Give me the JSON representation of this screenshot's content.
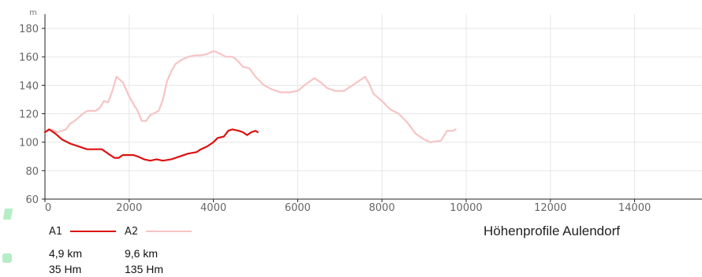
{
  "chart_data": {
    "type": "line",
    "title": "Höhenprofile Aulendorf",
    "ylabel": "m",
    "xlabel": "",
    "xlim": [
      0,
      15600
    ],
    "ylim": [
      60,
      190
    ],
    "x_ticks": [
      0,
      2000,
      4000,
      6000,
      8000,
      10000,
      12000,
      14000
    ],
    "y_ticks": [
      60,
      80,
      100,
      120,
      140,
      160,
      180
    ],
    "grid": true,
    "series": [
      {
        "name": "A1",
        "color": "#dd1111",
        "distance": "4,9 km",
        "ascent": "35 Hm",
        "points": [
          [
            0,
            107
          ],
          [
            100,
            109
          ],
          [
            250,
            106
          ],
          [
            400,
            102
          ],
          [
            600,
            99
          ],
          [
            800,
            97
          ],
          [
            1000,
            95
          ],
          [
            1200,
            95
          ],
          [
            1350,
            95
          ],
          [
            1500,
            92
          ],
          [
            1650,
            89
          ],
          [
            1750,
            89
          ],
          [
            1850,
            91
          ],
          [
            2000,
            91
          ],
          [
            2100,
            91
          ],
          [
            2200,
            90
          ],
          [
            2350,
            88
          ],
          [
            2500,
            87
          ],
          [
            2650,
            88
          ],
          [
            2800,
            87
          ],
          [
            3000,
            88
          ],
          [
            3200,
            90
          ],
          [
            3400,
            92
          ],
          [
            3600,
            93
          ],
          [
            3700,
            95
          ],
          [
            3850,
            97
          ],
          [
            4000,
            100
          ],
          [
            4100,
            103
          ],
          [
            4250,
            104
          ],
          [
            4350,
            108
          ],
          [
            4450,
            109
          ],
          [
            4600,
            108
          ],
          [
            4700,
            107
          ],
          [
            4800,
            105
          ],
          [
            4900,
            107
          ],
          [
            5000,
            108
          ],
          [
            5050,
            107
          ]
        ]
      },
      {
        "name": "A2",
        "color": "#f6c4c4",
        "distance": "9,6 km",
        "ascent": "135 Hm",
        "points": [
          [
            0,
            107
          ],
          [
            150,
            109
          ],
          [
            300,
            107
          ],
          [
            500,
            109
          ],
          [
            600,
            113
          ],
          [
            750,
            116
          ],
          [
            900,
            120
          ],
          [
            1000,
            122
          ],
          [
            1100,
            122
          ],
          [
            1200,
            122
          ],
          [
            1300,
            124
          ],
          [
            1400,
            129
          ],
          [
            1500,
            128
          ],
          [
            1600,
            136
          ],
          [
            1700,
            146
          ],
          [
            1850,
            142
          ],
          [
            2000,
            132
          ],
          [
            2100,
            127
          ],
          [
            2200,
            122
          ],
          [
            2300,
            115
          ],
          [
            2400,
            115
          ],
          [
            2500,
            119
          ],
          [
            2700,
            122
          ],
          [
            2800,
            130
          ],
          [
            2900,
            143
          ],
          [
            3000,
            150
          ],
          [
            3100,
            155
          ],
          [
            3250,
            158
          ],
          [
            3400,
            160
          ],
          [
            3550,
            161
          ],
          [
            3700,
            161
          ],
          [
            3850,
            162
          ],
          [
            4000,
            164
          ],
          [
            4100,
            163
          ],
          [
            4300,
            160
          ],
          [
            4450,
            160
          ],
          [
            4550,
            158
          ],
          [
            4700,
            153
          ],
          [
            4850,
            152
          ],
          [
            5000,
            146
          ],
          [
            5200,
            140
          ],
          [
            5400,
            137
          ],
          [
            5600,
            135
          ],
          [
            5800,
            135
          ],
          [
            6000,
            136
          ],
          [
            6200,
            141
          ],
          [
            6400,
            145
          ],
          [
            6550,
            142
          ],
          [
            6700,
            138
          ],
          [
            6900,
            136
          ],
          [
            7100,
            136
          ],
          [
            7300,
            140
          ],
          [
            7500,
            144
          ],
          [
            7600,
            146
          ],
          [
            7700,
            141
          ],
          [
            7800,
            134
          ],
          [
            8000,
            129
          ],
          [
            8200,
            123
          ],
          [
            8400,
            120
          ],
          [
            8600,
            114
          ],
          [
            8800,
            106
          ],
          [
            9000,
            102
          ],
          [
            9150,
            100
          ],
          [
            9400,
            101
          ],
          [
            9550,
            108
          ],
          [
            9700,
            108
          ],
          [
            9750,
            109
          ]
        ]
      }
    ]
  }
}
